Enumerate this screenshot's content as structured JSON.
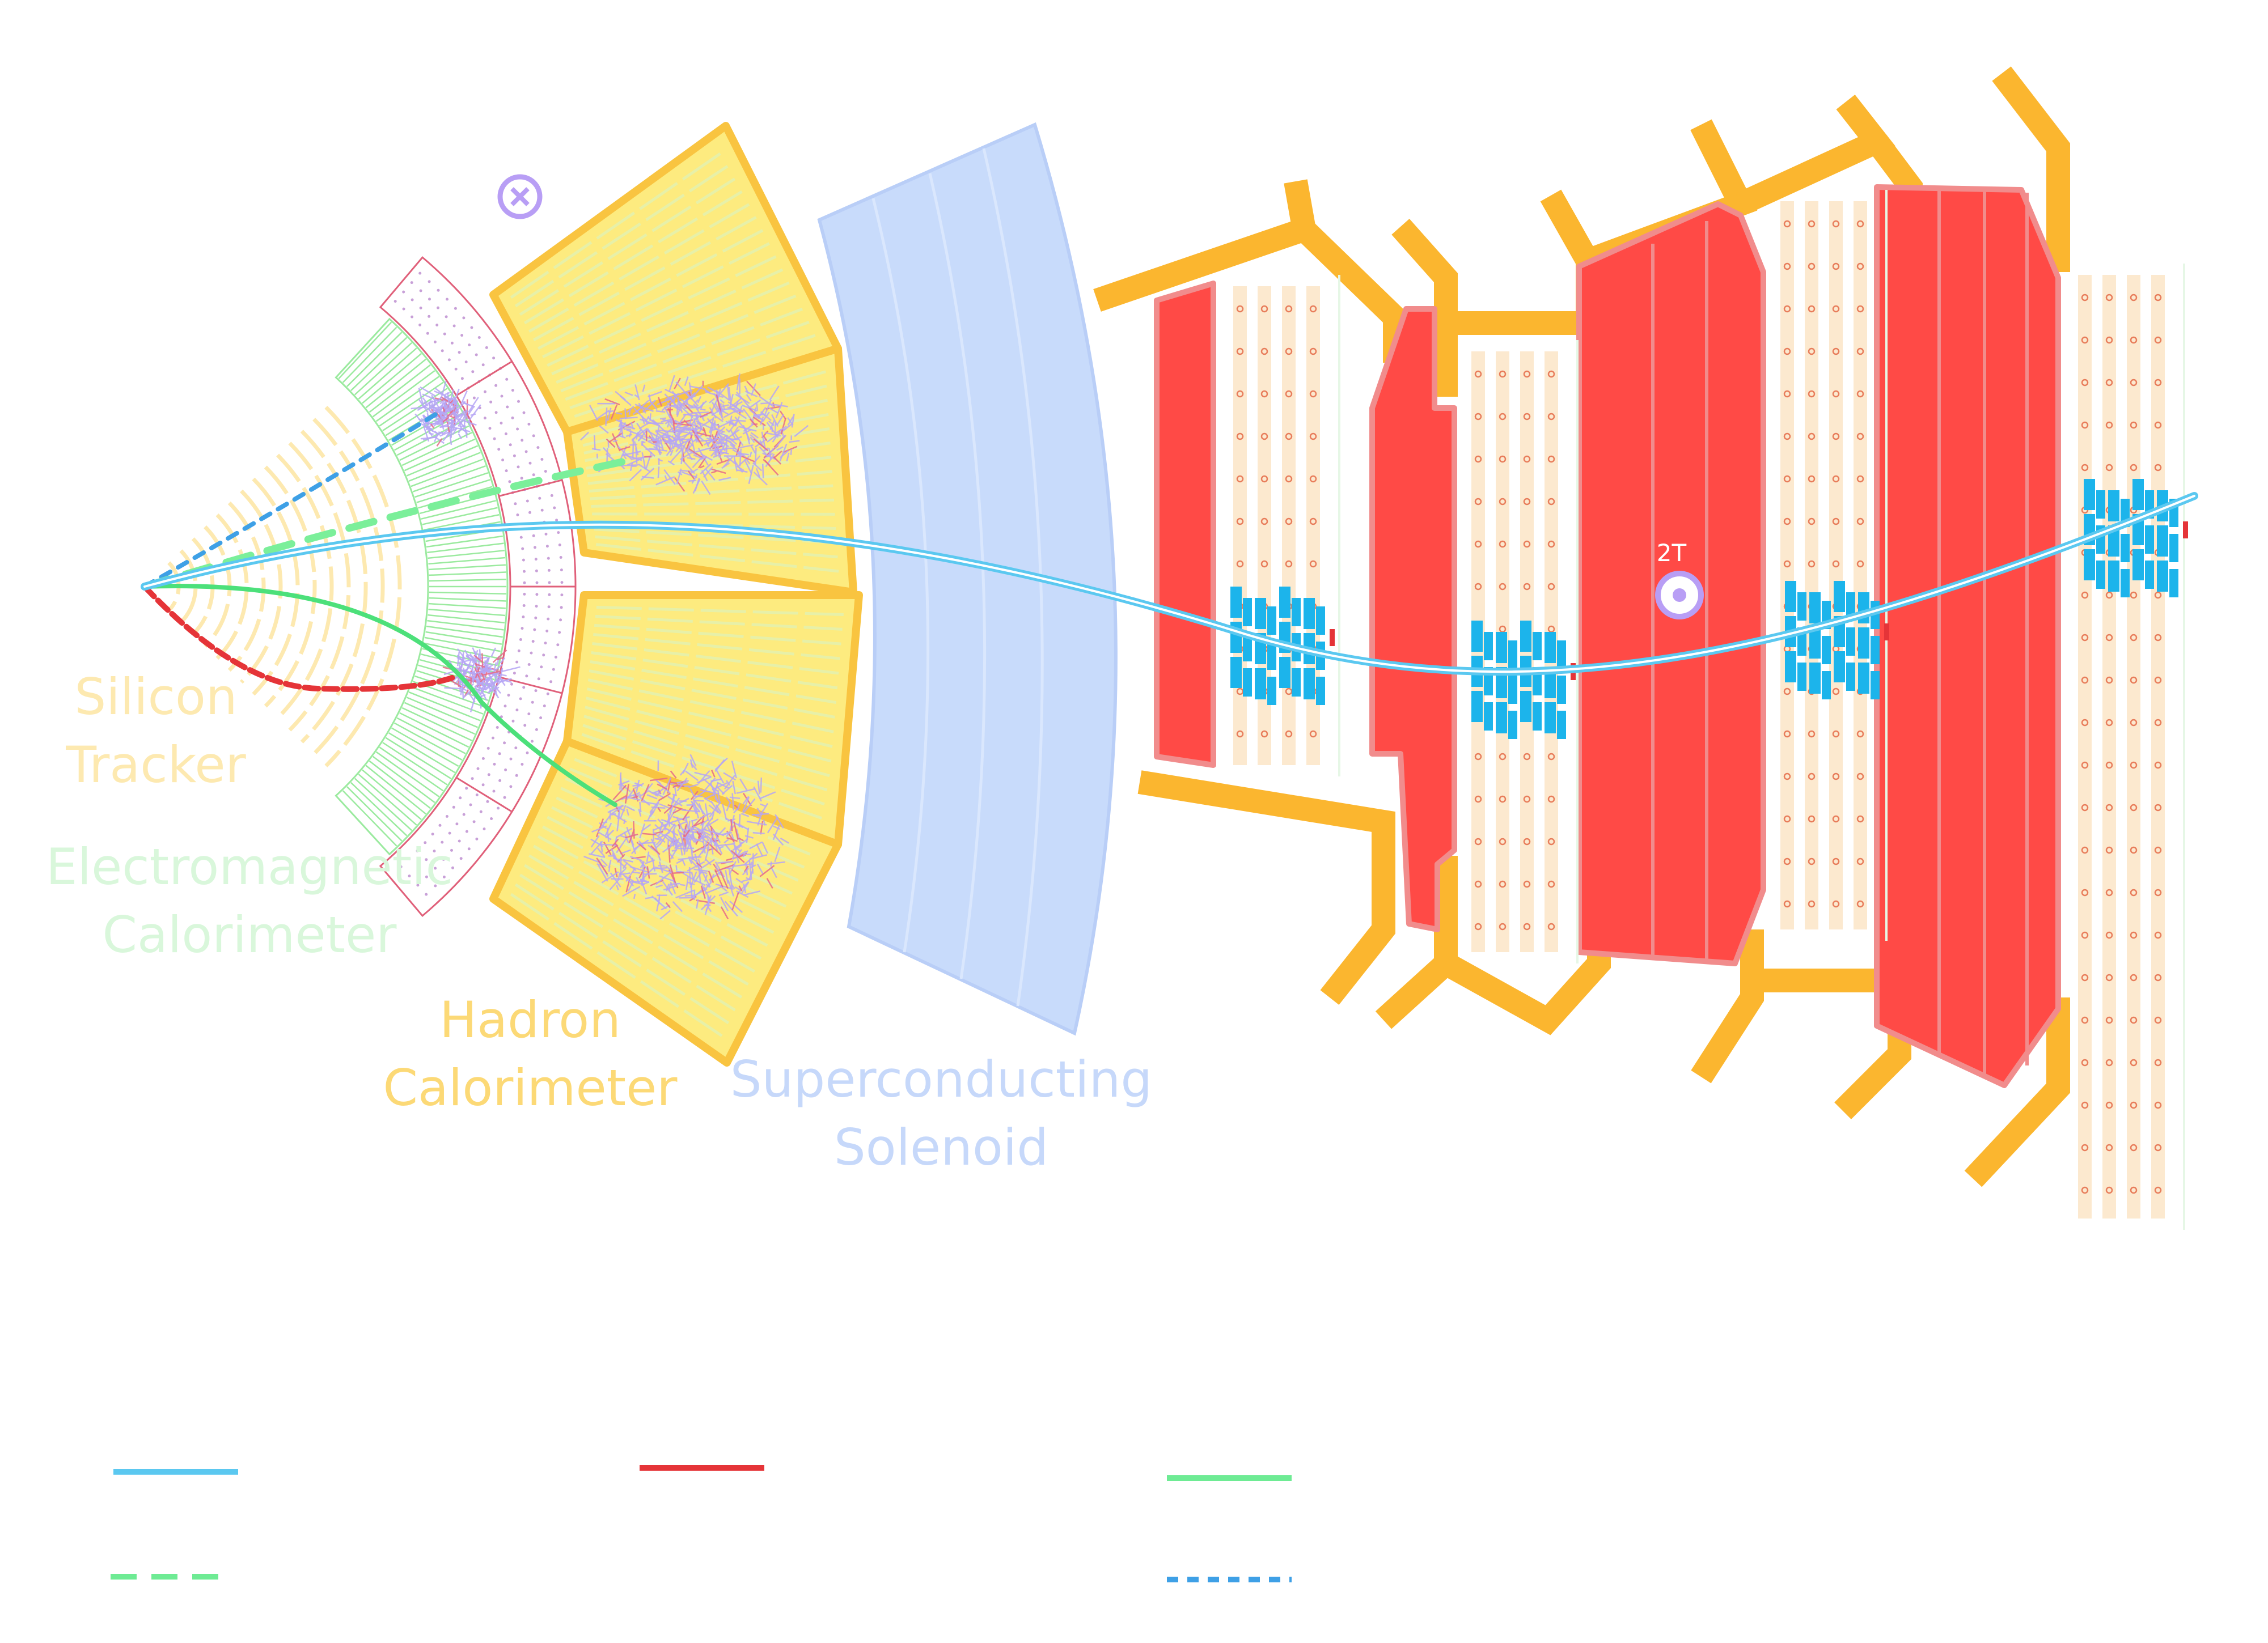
{
  "labels": {
    "silicon_tracker": [
      "Silicon",
      "Tracker"
    ],
    "em_calorimeter": [
      "Electromagnetic",
      "Calorimeter"
    ],
    "hadron_calorimeter": [
      "Hadron",
      "Calorimeter"
    ],
    "solenoid": [
      "Superconducting",
      "Solenoid"
    ],
    "field_strength": "2T"
  },
  "colors": {
    "tracker": "#FDE9B0",
    "ecal": "#9BEA9F",
    "ecal_label": "#D9F7DB",
    "preshower": "#E0607A",
    "hcal_fill": "#FDEB7F",
    "hcal_edge": "#F9C440",
    "solenoid": "#C8DBFB",
    "solenoid_label": "#C6D8FA",
    "return_yoke": "#FF4A46",
    "yoke_edge": "#F18C8C",
    "support": "#FBB62F",
    "muon_chamber": "#FCE9CF",
    "muon_hit": "#1CB4EB",
    "muon_track": "#5BC8F0",
    "electron_track": "#E53438",
    "charged_hadron_track": "#4CE07A",
    "neutral_hadron_track": "#7BEF9A",
    "photon_track": "#3EA0E6",
    "shower": "#B6A6F5",
    "field_symbol": "#B89EF5"
  },
  "legend": [
    {
      "style": "solid",
      "color": "#5BC8F0"
    },
    {
      "style": "solid",
      "color": "#E53438"
    },
    {
      "style": "solid",
      "color": "#4CE07A"
    },
    {
      "style": "dashed",
      "color": "#4CE07A"
    },
    {
      "style": "dotted",
      "color": "#3EA0E6"
    }
  ]
}
